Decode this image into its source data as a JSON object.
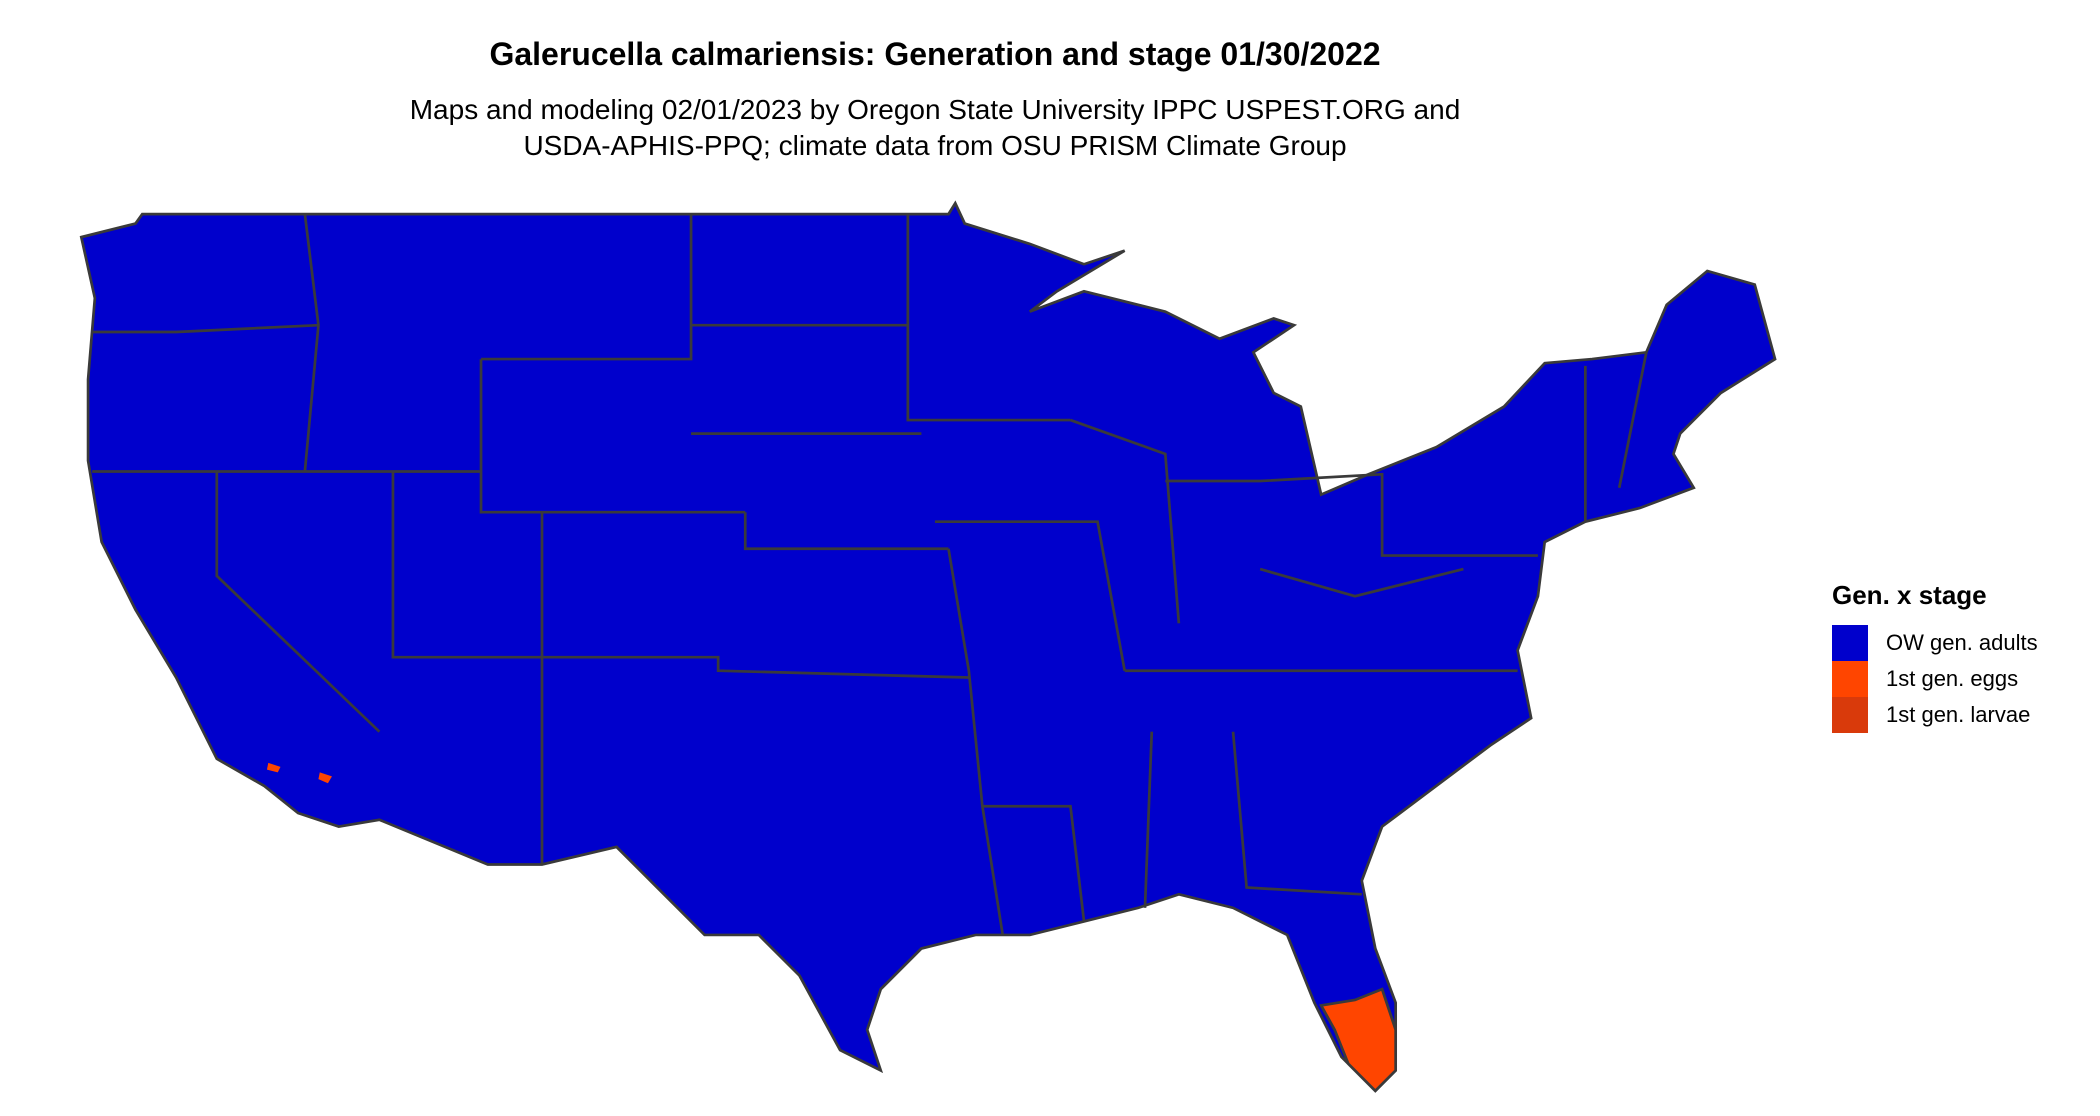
{
  "title": "Galerucella calmariensis: Generation and stage 01/30/2022",
  "subtitle_line1": "Maps and modeling 02/01/2023 by Oregon State University IPPC USPEST.ORG and",
  "subtitle_line2": "USDA-APHIS-PPQ; climate data from OSU PRISM Climate Group",
  "legend": {
    "title": "Gen. x stage",
    "items": [
      {
        "label": "OW gen. adults",
        "color": "#0000CC"
      },
      {
        "label": "1st gen. eggs",
        "color": "#FF4500"
      },
      {
        "label": "1st gen. larvae",
        "color": "#D93A0B"
      }
    ]
  },
  "map": {
    "region": "Conterminous United States",
    "dominant_class": "OW gen. adults",
    "border_color": "#3a3a3a"
  }
}
